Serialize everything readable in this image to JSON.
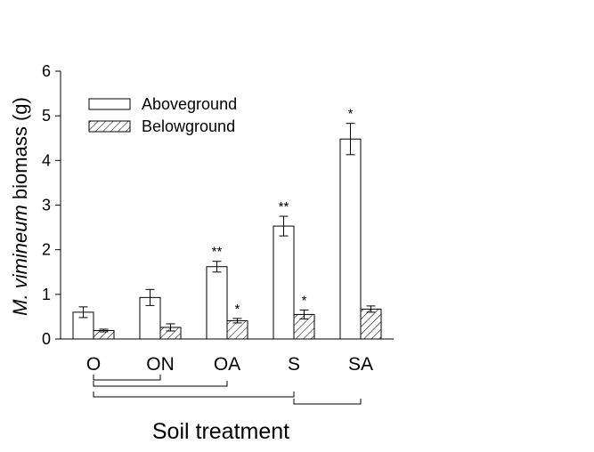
{
  "chart_data": {
    "type": "bar",
    "xlabel": "Soil treatment",
    "ylabel_italic": "M. vimineum",
    "ylabel_rest": " biomass (g)",
    "ylim": [
      0,
      6
    ],
    "yticks": [
      "0",
      "1",
      "2",
      "3",
      "4",
      "5",
      "6"
    ],
    "categories": [
      "O",
      "ON",
      "OA",
      "S",
      "SA"
    ],
    "legend_position": "top-left",
    "series": [
      {
        "name": "Aboveground",
        "pattern": "open",
        "values": [
          0.6,
          0.93,
          1.62,
          2.53,
          4.48
        ],
        "errors": [
          0.12,
          0.18,
          0.12,
          0.22,
          0.35
        ],
        "annotations": [
          "",
          "",
          "**",
          "**",
          "*"
        ]
      },
      {
        "name": "Belowground",
        "pattern": "hatched",
        "values": [
          0.19,
          0.26,
          0.41,
          0.55,
          0.67
        ],
        "errors": [
          0.03,
          0.08,
          0.05,
          0.1,
          0.07
        ],
        "annotations": [
          "",
          "",
          "*",
          "*",
          ""
        ]
      }
    ],
    "brackets": [
      {
        "from": "O",
        "to": "ON"
      },
      {
        "from": "O",
        "to": "OA"
      },
      {
        "from": "O",
        "to": "S"
      },
      {
        "from": "S",
        "to": "SA"
      }
    ]
  }
}
